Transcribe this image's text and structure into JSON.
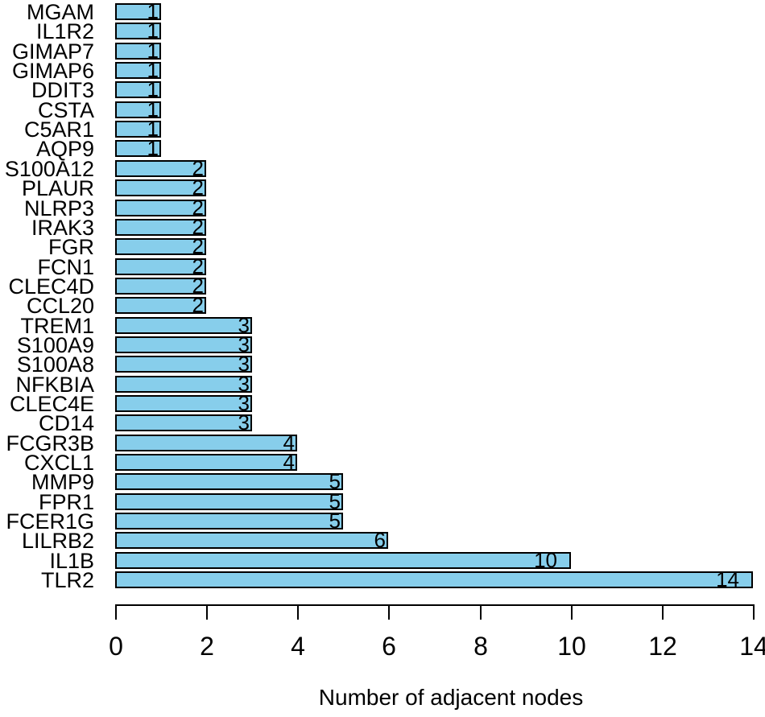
{
  "chart_data": {
    "type": "bar",
    "orientation": "horizontal",
    "title": "",
    "xlabel": "Number of adjacent nodes",
    "ylabel": "",
    "categories": [
      "MGAM",
      "IL1R2",
      "GIMAP7",
      "GIMAP6",
      "DDIT3",
      "CSTA",
      "C5AR1",
      "AQP9",
      "S100A12",
      "PLAUR",
      "NLRP3",
      "IRAK3",
      "FGR",
      "FCN1",
      "CLEC4D",
      "CCL20",
      "TREM1",
      "S100A9",
      "S100A8",
      "NFKBIA",
      "CLEC4E",
      "CD14",
      "FCGR3B",
      "CXCL1",
      "MMP9",
      "FPR1",
      "FCER1G",
      "LILRB2",
      "IL1B",
      "TLR2"
    ],
    "values": [
      1,
      1,
      1,
      1,
      1,
      1,
      1,
      1,
      2,
      2,
      2,
      2,
      2,
      2,
      2,
      2,
      3,
      3,
      3,
      3,
      3,
      3,
      4,
      4,
      5,
      5,
      5,
      6,
      10,
      14
    ],
    "value_labels_shown": true,
    "xlim": [
      0,
      14
    ],
    "xticks": [
      0,
      2,
      4,
      6,
      8,
      10,
      12,
      14
    ],
    "grid": false,
    "legend": null,
    "colors": {
      "bar_fill": "#87CEEB",
      "bar_border": "#000000",
      "axis": "#000000",
      "text": "#000000",
      "background": "#FFFFFF"
    }
  }
}
